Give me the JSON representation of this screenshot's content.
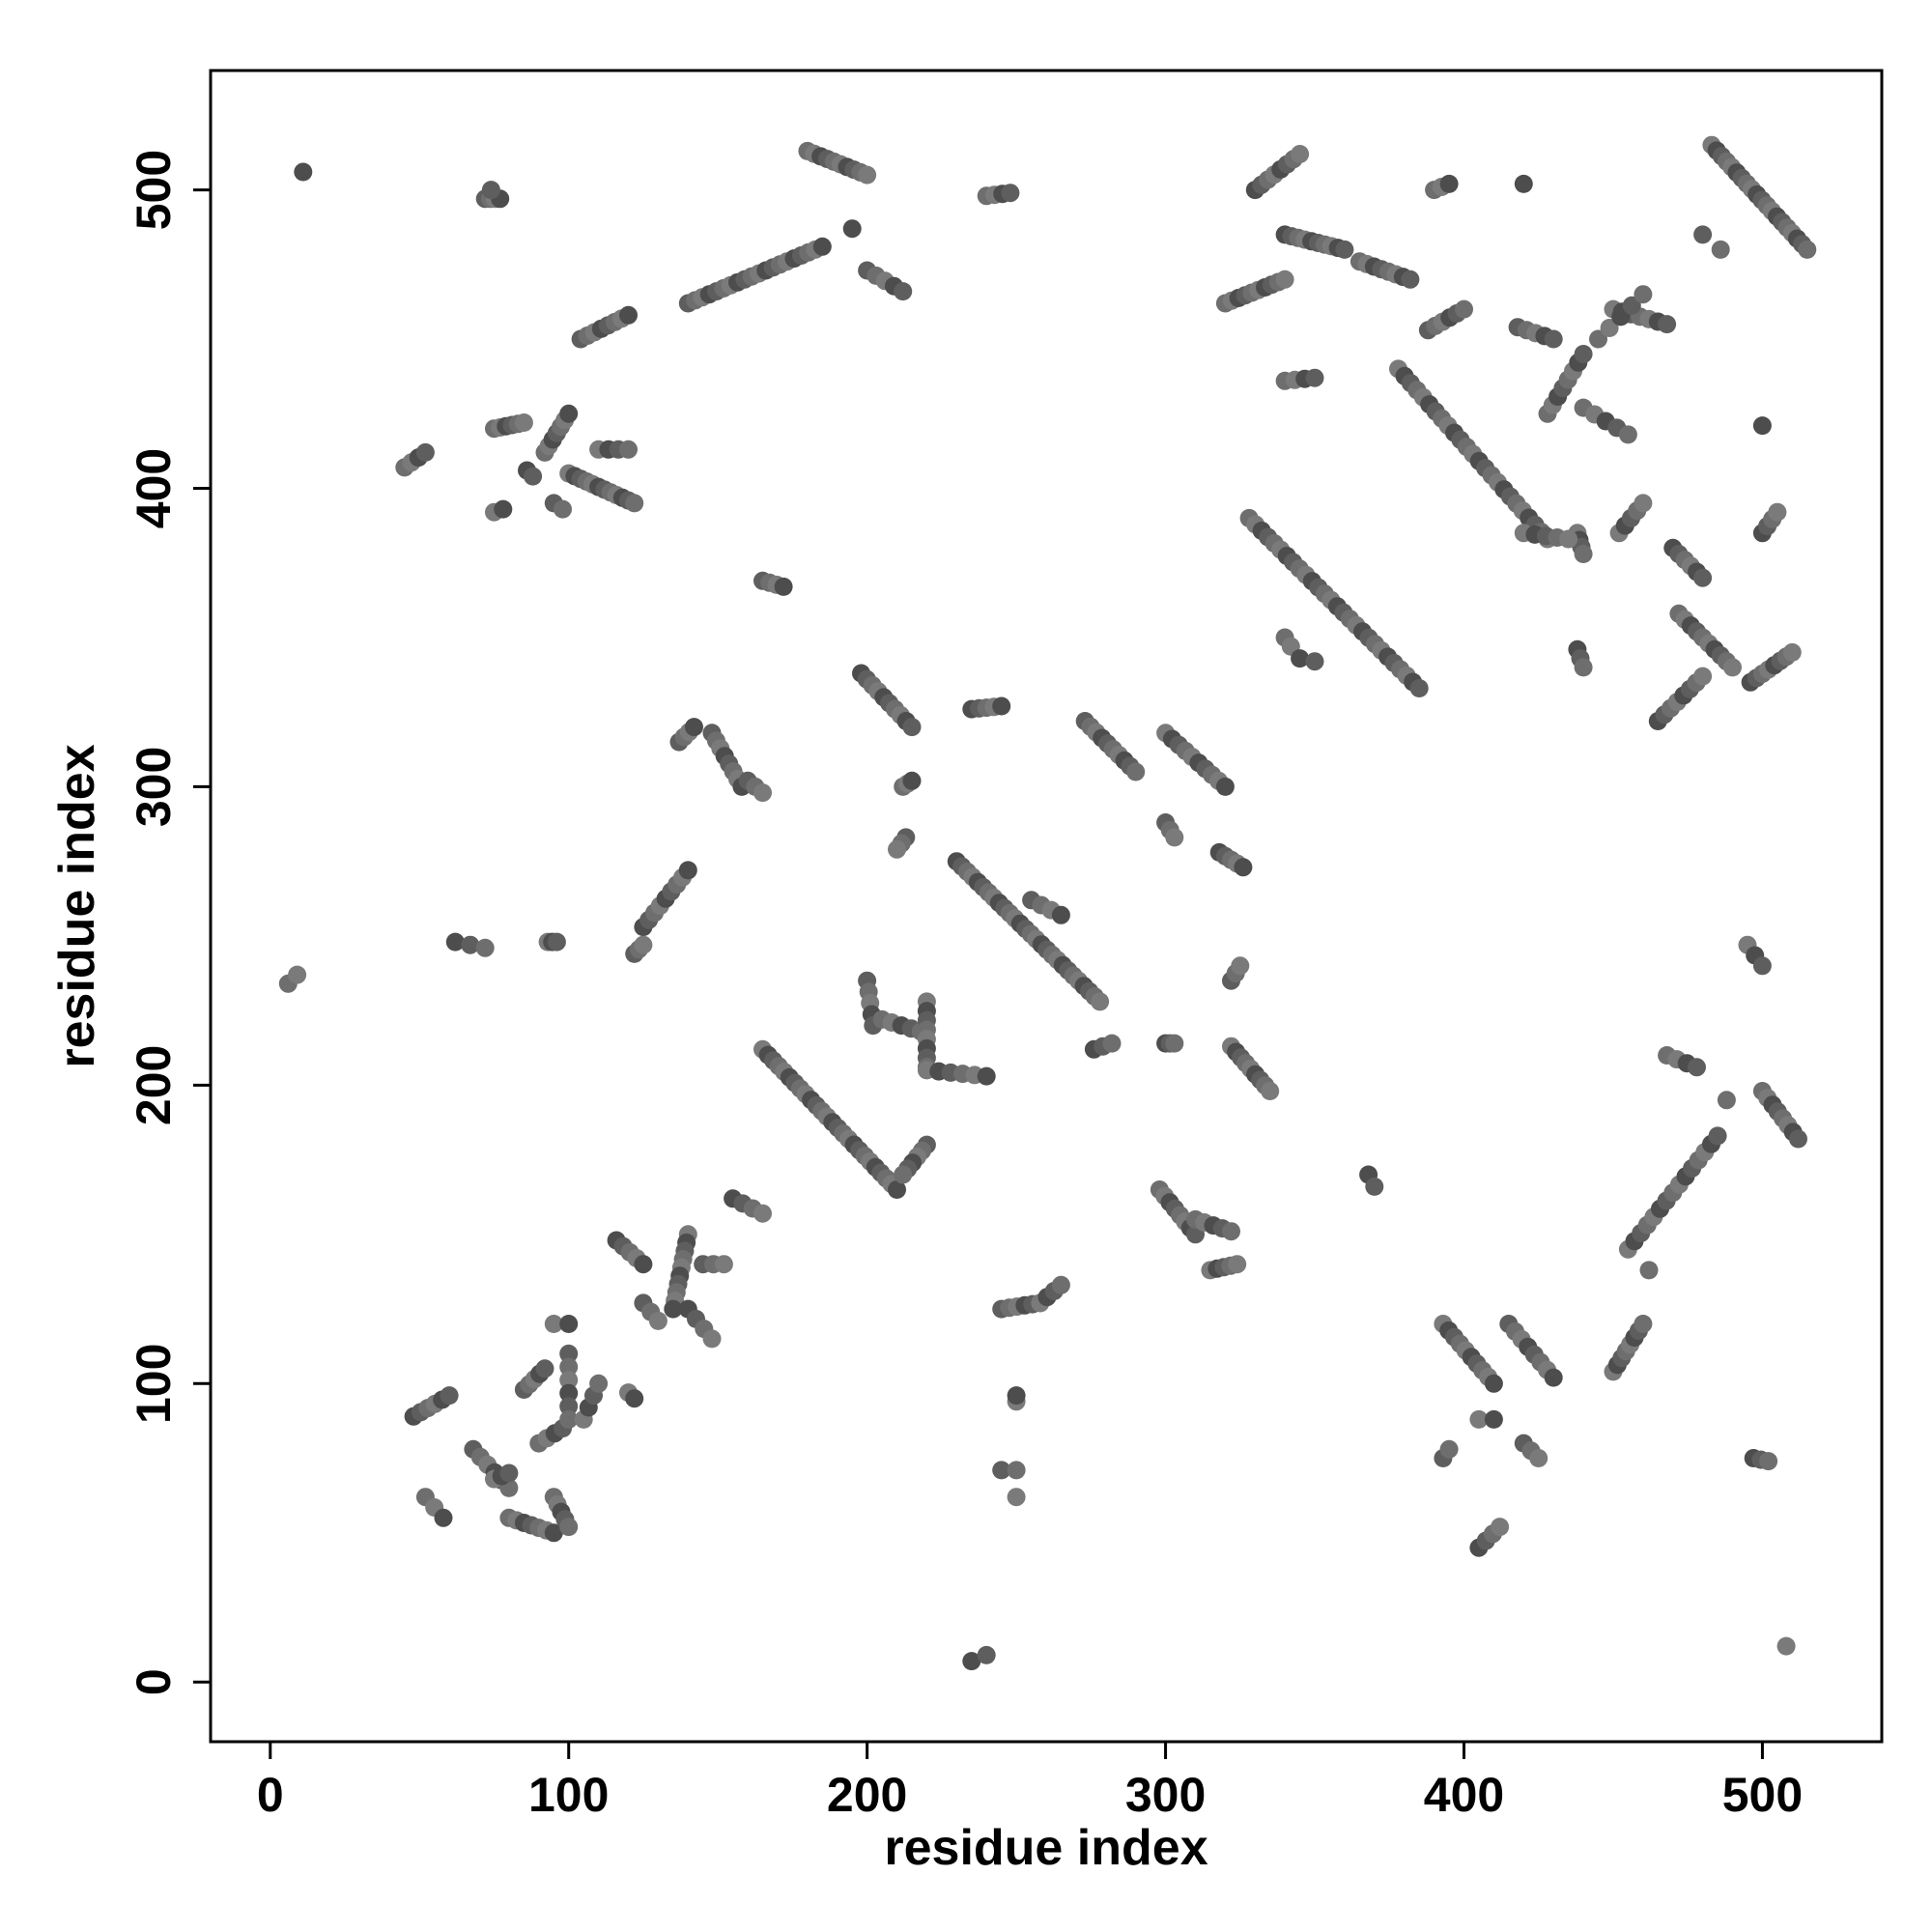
{
  "chart_data": {
    "type": "scatter",
    "title": "",
    "xlabel": "residue index",
    "ylabel": "residue index",
    "xlim": [
      -20,
      540
    ],
    "ylim": [
      -20,
      540
    ],
    "x_ticks": [
      0,
      100,
      200,
      300,
      400,
      500
    ],
    "y_ticks": [
      0,
      100,
      200,
      300,
      400,
      500
    ],
    "x_tick_labels": [
      "0",
      "100",
      "200",
      "300",
      "400",
      "500"
    ],
    "y_tick_labels": [
      "0",
      "100",
      "200",
      "300",
      "400",
      "500"
    ],
    "grid": false,
    "legend": "none",
    "point_colors": [
      "#4d4d4d",
      "#5e5e5e",
      "#6e6e6e",
      "#7a7a7a"
    ],
    "segments": [
      [
        11,
        506,
        11,
        506,
        1
      ],
      [
        72,
        497,
        77,
        497,
        4
      ],
      [
        74,
        500,
        74,
        500,
        1
      ],
      [
        180,
        513,
        200,
        505,
        10
      ],
      [
        195,
        487,
        195,
        487,
        1
      ],
      [
        140,
        462,
        185,
        481,
        20
      ],
      [
        104,
        450,
        120,
        458,
        8
      ],
      [
        200,
        473,
        212,
        466,
        5
      ],
      [
        240,
        498,
        248,
        499,
        4
      ],
      [
        45,
        407,
        52,
        412,
        4
      ],
      [
        75,
        420,
        85,
        422,
        6
      ],
      [
        86,
        406,
        88,
        404,
        2
      ],
      [
        92,
        412,
        100,
        425,
        7
      ],
      [
        95,
        395,
        98,
        393,
        2
      ],
      [
        100,
        405,
        122,
        395,
        12
      ],
      [
        110,
        413,
        120,
        413,
        4
      ],
      [
        75,
        392,
        78,
        393,
        2
      ],
      [
        165,
        369,
        172,
        367,
        4
      ],
      [
        137,
        315,
        142,
        320,
        4
      ],
      [
        148,
        318,
        158,
        300,
        8
      ],
      [
        160,
        302,
        165,
        298,
        3
      ],
      [
        125,
        253,
        140,
        272,
        9
      ],
      [
        122,
        244,
        125,
        247,
        3
      ],
      [
        62,
        248,
        72,
        246,
        3
      ],
      [
        93,
        248,
        96,
        248,
        3
      ],
      [
        6,
        234,
        9,
        237,
        2
      ],
      [
        198,
        338,
        215,
        320,
        10
      ],
      [
        212,
        300,
        215,
        302,
        3
      ],
      [
        213,
        283,
        210,
        279,
        3
      ],
      [
        230,
        275,
        278,
        228,
        28
      ],
      [
        235,
        326,
        245,
        327,
        5
      ],
      [
        255,
        262,
        265,
        257,
        4
      ],
      [
        273,
        322,
        290,
        305,
        10
      ],
      [
        300,
        318,
        320,
        300,
        10
      ],
      [
        300,
        288,
        303,
        283,
        3
      ],
      [
        318,
        278,
        326,
        273,
        5
      ],
      [
        322,
        235,
        325,
        240,
        3
      ],
      [
        300,
        214,
        303,
        214,
        3
      ],
      [
        322,
        213,
        335,
        198,
        9
      ],
      [
        276,
        212,
        282,
        214,
        3
      ],
      [
        165,
        212,
        210,
        165,
        26
      ],
      [
        200,
        235,
        202,
        220,
        5
      ],
      [
        205,
        222,
        218,
        218,
        5
      ],
      [
        220,
        228,
        220,
        206,
        8
      ],
      [
        220,
        205,
        240,
        203,
        6
      ],
      [
        220,
        180,
        212,
        170,
        6
      ],
      [
        140,
        150,
        135,
        125,
        10
      ],
      [
        145,
        140,
        152,
        140,
        3
      ],
      [
        116,
        148,
        125,
        140,
        5
      ],
      [
        125,
        127,
        130,
        121,
        3
      ],
      [
        140,
        125,
        148,
        115,
        4
      ],
      [
        155,
        162,
        165,
        157,
        4
      ],
      [
        48,
        89,
        60,
        96,
        6
      ],
      [
        52,
        62,
        58,
        55,
        3
      ],
      [
        68,
        78,
        80,
        65,
        6
      ],
      [
        75,
        68,
        80,
        70,
        3
      ],
      [
        80,
        55,
        95,
        50,
        7
      ],
      [
        85,
        98,
        92,
        105,
        5
      ],
      [
        90,
        80,
        98,
        85,
        4
      ],
      [
        95,
        62,
        100,
        52,
        5
      ],
      [
        95,
        120,
        100,
        120,
        2
      ],
      [
        100,
        110,
        100,
        88,
        6
      ],
      [
        105,
        88,
        110,
        100,
        4
      ],
      [
        120,
        97,
        122,
        95,
        2
      ],
      [
        245,
        125,
        258,
        127,
        6
      ],
      [
        258,
        127,
        265,
        133,
        4
      ],
      [
        250,
        94,
        250,
        96,
        2
      ],
      [
        245,
        71,
        250,
        71,
        2
      ],
      [
        250,
        62,
        250,
        62,
        1
      ],
      [
        235,
        7,
        240,
        9,
        2
      ],
      [
        298,
        165,
        310,
        150,
        8
      ],
      [
        310,
        155,
        322,
        151,
        5
      ],
      [
        315,
        138,
        324,
        140,
        5
      ],
      [
        368,
        170,
        370,
        166,
        2
      ],
      [
        320,
        462,
        340,
        470,
        10
      ],
      [
        330,
        500,
        345,
        512,
        8
      ],
      [
        340,
        485,
        360,
        480,
        10
      ],
      [
        365,
        476,
        382,
        470,
        8
      ],
      [
        340,
        436,
        350,
        437,
        4
      ],
      [
        340,
        350,
        342,
        347,
        2
      ],
      [
        345,
        343,
        350,
        342,
        2
      ],
      [
        328,
        390,
        385,
        333,
        28
      ],
      [
        390,
        500,
        395,
        502,
        3
      ],
      [
        388,
        453,
        400,
        460,
        6
      ],
      [
        378,
        440,
        428,
        383,
        25
      ],
      [
        420,
        502,
        420,
        502,
        1
      ],
      [
        418,
        454,
        430,
        450,
        5
      ],
      [
        428,
        425,
        440,
        445,
        8
      ],
      [
        440,
        427,
        455,
        418,
        5
      ],
      [
        450,
        460,
        468,
        455,
        7
      ],
      [
        445,
        450,
        460,
        465,
        5
      ],
      [
        438,
        385,
        440,
        378,
        4
      ],
      [
        420,
        385,
        435,
        383,
        5
      ],
      [
        438,
        346,
        440,
        340,
        3
      ],
      [
        452,
        385,
        460,
        395,
        5
      ],
      [
        470,
        380,
        480,
        370,
        6
      ],
      [
        472,
        358,
        490,
        340,
        10
      ],
      [
        465,
        322,
        480,
        337,
        8
      ],
      [
        496,
        335,
        510,
        345,
        8
      ],
      [
        500,
        385,
        505,
        392,
        4
      ],
      [
        500,
        421,
        500,
        421,
        1
      ],
      [
        480,
        485,
        486,
        480,
        2
      ],
      [
        483,
        515,
        515,
        480,
        20
      ],
      [
        495,
        247,
        500,
        240,
        3
      ],
      [
        468,
        210,
        478,
        206,
        4
      ],
      [
        488,
        195,
        488,
        195,
        1
      ],
      [
        455,
        145,
        485,
        183,
        15
      ],
      [
        500,
        198,
        512,
        182,
        8
      ],
      [
        462,
        138,
        462,
        138,
        1
      ],
      [
        450,
        104,
        460,
        120,
        8
      ],
      [
        393,
        120,
        410,
        100,
        10
      ],
      [
        415,
        120,
        430,
        102,
        8
      ],
      [
        393,
        75,
        395,
        78,
        2
      ],
      [
        405,
        88,
        410,
        88,
        2
      ],
      [
        420,
        80,
        425,
        75,
        3
      ],
      [
        405,
        45,
        412,
        52,
        4
      ],
      [
        497,
        75,
        502,
        74,
        3
      ],
      [
        508,
        12,
        508,
        12,
        1
      ]
    ],
    "points_note": ""
  }
}
